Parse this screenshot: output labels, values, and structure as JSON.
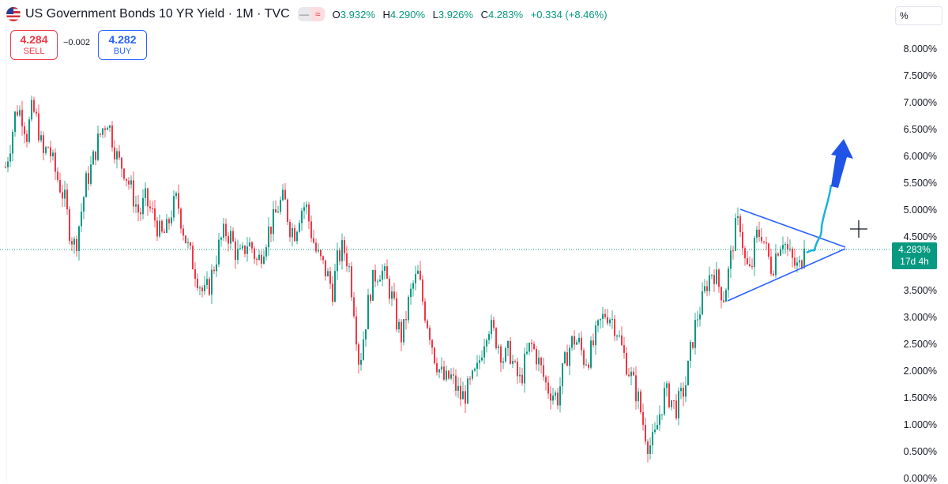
{
  "header": {
    "title": "US Government Bonds 10 YR Yield · 1M · TVC",
    "flag_icon": "us-flag-icon",
    "ohlc": {
      "o_label": "O",
      "o_value": "3.932%",
      "h_label": "H",
      "h_value": "4.290%",
      "l_label": "L",
      "l_value": "3.926%",
      "c_label": "C",
      "c_value": "4.283%",
      "change": "+0.334 (+8.46%)"
    },
    "up_color": "#089981",
    "down_color": "#f23645"
  },
  "trade": {
    "sell_price": "4.284",
    "sell_label": "SELL",
    "spread": "−0.002",
    "buy_price": "4.282",
    "buy_label": "BUY"
  },
  "scale_unit": "%",
  "price_tag": {
    "value": "4.283%",
    "countdown": "17d 4h",
    "color": "#089981"
  },
  "chart_data": {
    "type": "candlestick",
    "series": [
      {
        "name": "US Government Bonds 10 YR Yield",
        "interval": "1M"
      }
    ],
    "y_ticks": [
      "8.000%",
      "7.500%",
      "7.000%",
      "6.500%",
      "6.000%",
      "5.500%",
      "5.000%",
      "4.500%",
      "4.000%",
      "3.500%",
      "3.000%",
      "2.500%",
      "2.000%",
      "1.500%",
      "1.000%",
      "0.500%",
      "0.000%"
    ],
    "ylim": [
      0,
      8
    ],
    "current_price": 4.283,
    "close_path_estimated": [
      5.8,
      6.3,
      6.9,
      6.8,
      6.4,
      6.9,
      6.6,
      6.0,
      6.2,
      5.8,
      5.5,
      5.2,
      4.6,
      4.3,
      4.9,
      5.5,
      5.8,
      6.2,
      6.5,
      6.7,
      6.3,
      5.9,
      5.8,
      5.5,
      5.2,
      4.9,
      5.2,
      5.0,
      4.8,
      4.5,
      4.6,
      5.0,
      5.2,
      4.7,
      4.3,
      4.0,
      3.7,
      3.4,
      3.6,
      4.0,
      4.4,
      4.6,
      4.5,
      4.2,
      4.1,
      4.4,
      4.3,
      4.0,
      4.3,
      4.6,
      4.8,
      5.1,
      5.2,
      4.7,
      4.6,
      5.0,
      5.1,
      4.6,
      4.2,
      4.0,
      3.8,
      3.5,
      4.1,
      4.3,
      4.0,
      3.2,
      2.1,
      2.8,
      3.5,
      3.8,
      3.9,
      3.7,
      3.4,
      2.9,
      2.6,
      3.2,
      3.6,
      3.8,
      3.2,
      2.8,
      2.3,
      2.0,
      1.8,
      1.9,
      1.7,
      1.5,
      1.6,
      1.8,
      2.0,
      2.5,
      2.9,
      2.7,
      2.5,
      2.2,
      2.4,
      2.0,
      1.8,
      2.2,
      2.5,
      2.3,
      2.0,
      1.7,
      1.6,
      1.5,
      2.0,
      2.4,
      2.6,
      2.5,
      2.2,
      2.3,
      2.6,
      2.9,
      3.1,
      3.0,
      2.8,
      2.4,
      2.1,
      1.8,
      1.5,
      1.0,
      0.6,
      0.7,
      1.2,
      1.6,
      1.5,
      1.3,
      1.5,
      1.8,
      2.5,
      3.0,
      3.3,
      3.7,
      3.9,
      3.6,
      3.4,
      3.9,
      4.6,
      4.8,
      4.0,
      3.8,
      4.5,
      4.6,
      4.2,
      3.9,
      4.3,
      4.5,
      4.2,
      4.0,
      3.9,
      4.28
    ],
    "annotations": {
      "triangle_pattern": {
        "upper_line": [
          [
            4.98,
            0
          ],
          [
            4.4,
            1
          ]
        ],
        "lower_line": [
          [
            3.33,
            0
          ],
          [
            4.3,
            1
          ]
        ]
      },
      "projection_arrow": {
        "from": 4.35,
        "to": 6.4,
        "color": "#1f54e6",
        "path_color": "#1ab2dd"
      }
    },
    "grid": false,
    "crosshair_icon": "crosshair-icon"
  }
}
